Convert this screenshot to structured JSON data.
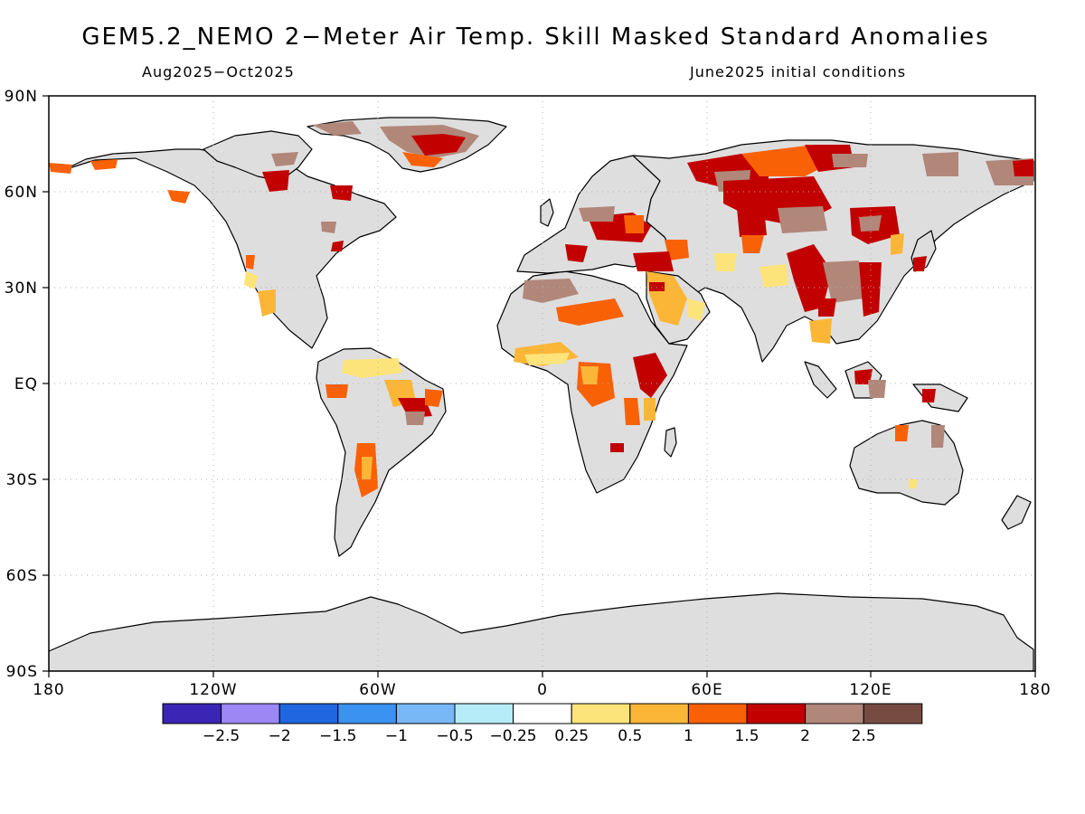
{
  "title": "GEM5.2_NEMO 2−Meter Air Temp. Skill Masked Standard Anomalies",
  "subtitle_left": "Aug2025−Oct2025",
  "subtitle_right": "June2025 initial conditions",
  "axes": {
    "lon_labels": [
      "180",
      "120W",
      "60W",
      "0",
      "60E",
      "120E",
      "180"
    ],
    "lat_labels": [
      "90N",
      "60N",
      "30N",
      "EQ",
      "30S",
      "60S",
      "90S"
    ]
  },
  "colorbar": {
    "colors": [
      "#3a25b5",
      "#9d87f5",
      "#1f66e0",
      "#3b92f0",
      "#79b8f7",
      "#b6ecf8",
      "#ffffff",
      "#fde47a",
      "#fbb638",
      "#f96107",
      "#c20000",
      "#b1877a",
      "#764c42"
    ],
    "labels": [
      "−2.5",
      "−2",
      "−1.5",
      "−1",
      "−0.5",
      "−0.25",
      "0.25",
      "0.5",
      "1",
      "1.5",
      "2",
      "2.5"
    ]
  },
  "colors": {
    "land_masked": "#dedede",
    "coast": "#000000",
    "grid": "#b0b0b0"
  }
}
